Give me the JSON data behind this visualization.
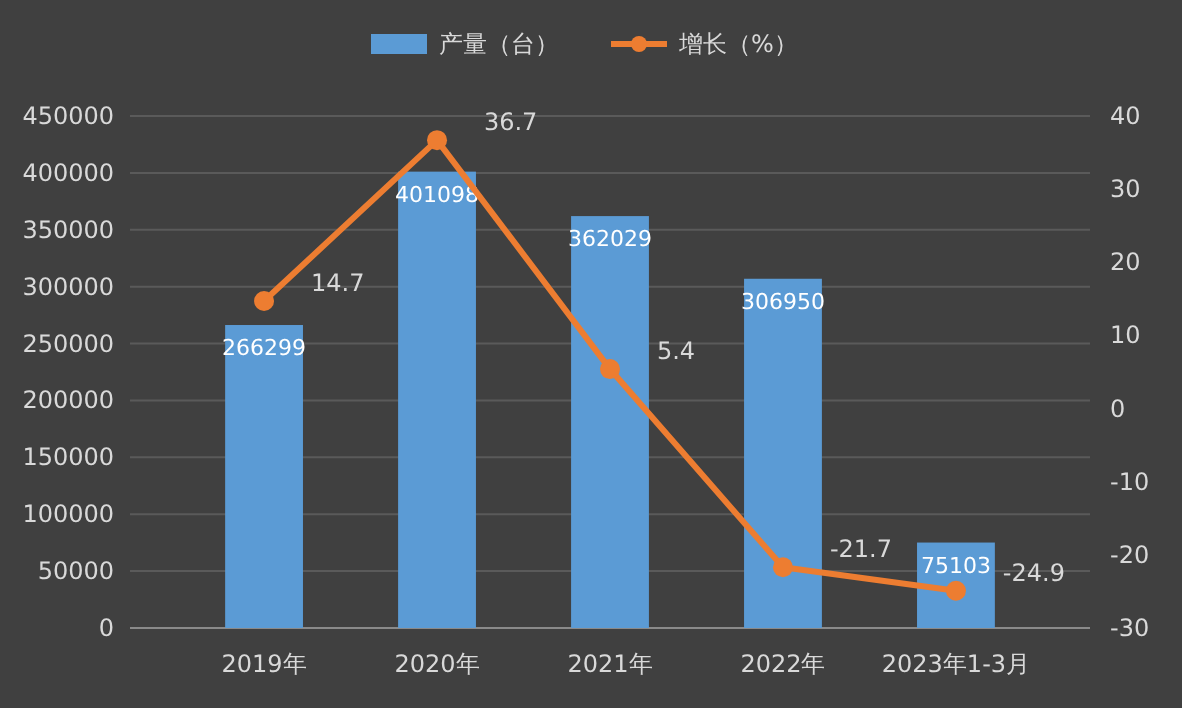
{
  "chart_data": {
    "type": "bar",
    "categories": [
      "2019年",
      "2020年",
      "2021年",
      "2022年",
      "2023年1-3月"
    ],
    "series": [
      {
        "name": "产量（台）",
        "color": "#5b9bd5",
        "values": [
          266299,
          401098,
          362029,
          306950,
          75103
        ]
      },
      {
        "name": "增长（%）",
        "type": "line",
        "axis": "y2",
        "color": "#ed7d31",
        "values": [
          14.7,
          36.7,
          5.4,
          -21.7,
          -24.9
        ]
      }
    ],
    "ylim": [
      0,
      450000
    ],
    "yticks": [
      0,
      50000,
      100000,
      150000,
      200000,
      250000,
      300000,
      350000,
      400000,
      450000
    ],
    "y2lim": [
      -30,
      40
    ],
    "y2ticks": [
      -30,
      -20,
      -10,
      0,
      10,
      20,
      30,
      40
    ],
    "grid": "y",
    "legend": "top",
    "marker": "circle",
    "data_labels": true
  }
}
